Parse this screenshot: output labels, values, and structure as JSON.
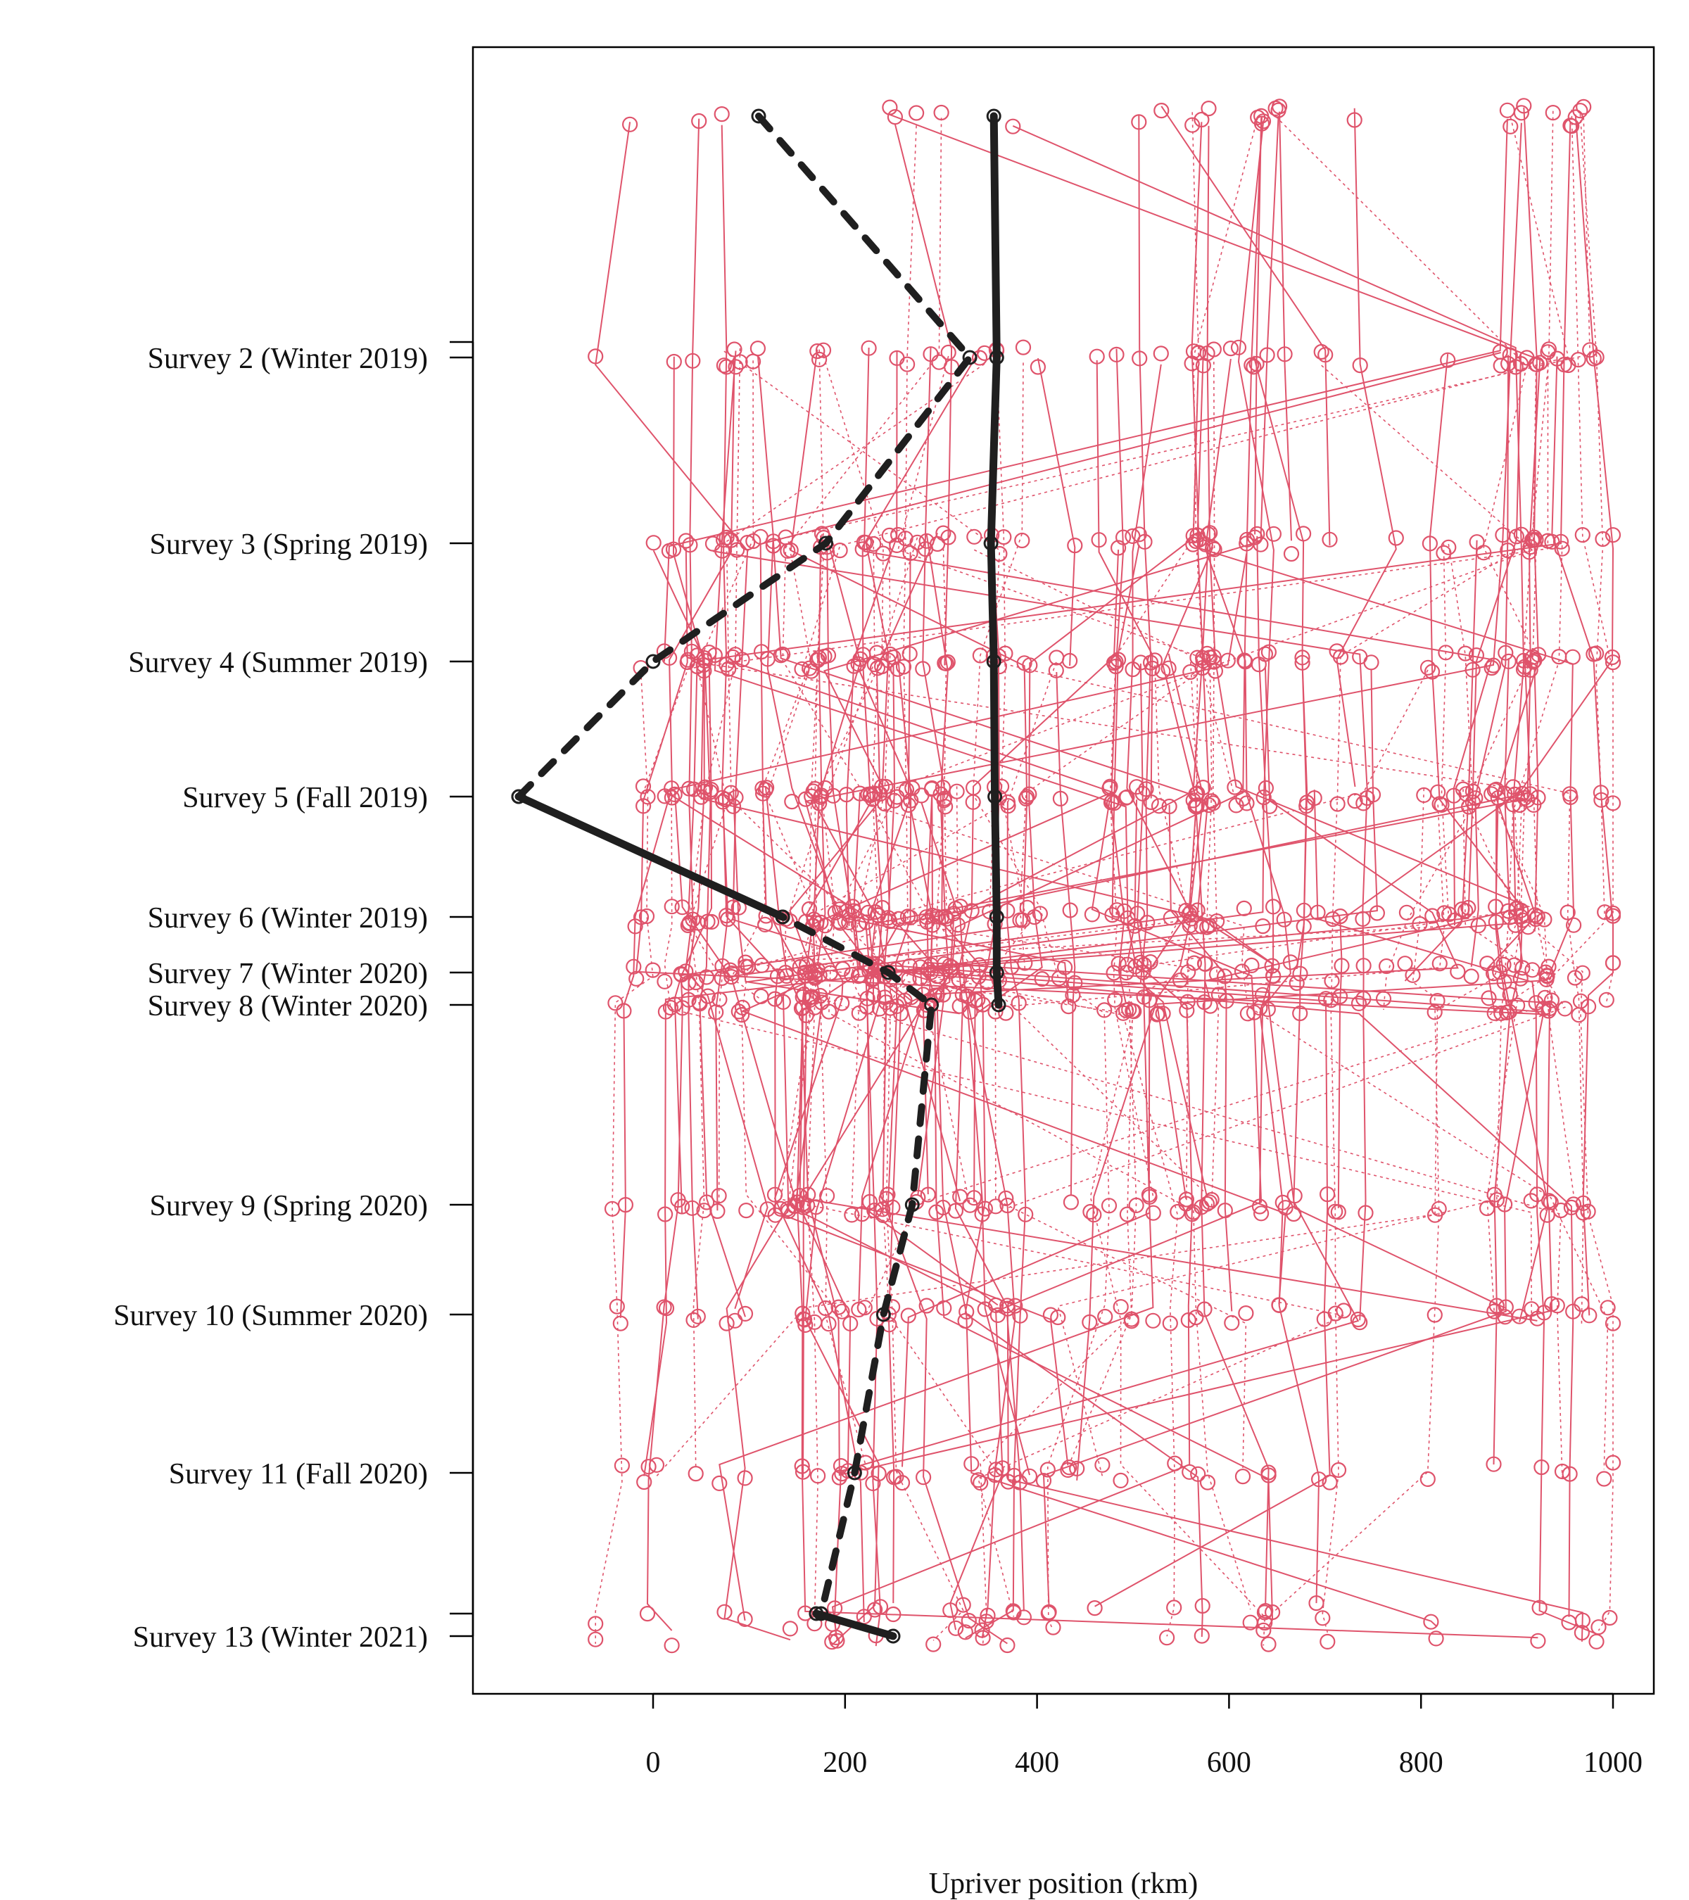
{
  "chart_data": {
    "type": "scatter",
    "title": "",
    "xlabel": "Upriver position (rkm)",
    "ylabel": "",
    "xlim": [
      -190,
      1045
    ],
    "x_ticks": [
      0,
      200,
      400,
      600,
      800,
      1000
    ],
    "survey_axis": [
      {
        "label": "Survey 2 (Winter 2019)"
      },
      {
        "label": "Survey 3 (Spring 2019)"
      },
      {
        "label": "Survey 4 (Summer 2019)"
      },
      {
        "label": "Survey 5 (Fall 2019)"
      },
      {
        "label": "Survey 6 (Winter 2019)"
      },
      {
        "label": "Survey 7 (Winter 2020)"
      },
      {
        "label": "Survey 8 (Winter 2020)"
      },
      {
        "label": "Survey 9 (Spring 2020)"
      },
      {
        "label": "Survey 10 (Summer 2020)"
      },
      {
        "label": "Survey 11 (Fall 2020)"
      },
      {
        "label": "Survey 13 (Winter 2021)"
      }
    ],
    "survey_order": [
      1,
      2,
      3,
      4,
      5,
      6,
      7,
      8,
      9,
      10,
      11,
      12,
      13
    ],
    "extra_axis_ticks": [
      2,
      13
    ],
    "colors": {
      "tracks": "#DF536B",
      "highlight": "#1f1f1f",
      "frame": "#000000"
    },
    "highlight_series": [
      {
        "style": "dashed",
        "points": [
          [
            1,
            110
          ],
          [
            2,
            330
          ],
          [
            3,
            180
          ],
          [
            4,
            0
          ],
          [
            5,
            -140
          ],
          [
            6,
            135
          ],
          [
            7,
            245
          ],
          [
            8,
            290
          ],
          [
            9,
            270
          ],
          [
            10,
            240
          ],
          [
            11,
            210
          ],
          [
            12,
            175
          ]
        ]
      },
      {
        "style": "solid",
        "points": [
          [
            5,
            -140
          ],
          [
            6,
            135
          ]
        ]
      },
      {
        "style": "solid",
        "points": [
          [
            12,
            170
          ],
          [
            13,
            250
          ]
        ]
      },
      {
        "style": "solid",
        "points": [
          [
            1,
            355
          ],
          [
            2,
            358
          ],
          [
            3,
            352
          ],
          [
            4,
            355
          ],
          [
            5,
            356
          ],
          [
            6,
            358
          ],
          [
            7,
            358
          ],
          [
            8,
            360
          ]
        ]
      }
    ],
    "background_tracks": {
      "description": "",
      "lanes_rkm": [
        15,
        45,
        80,
        110,
        150,
        175,
        210,
        240,
        270,
        300,
        330,
        350,
        360,
        375,
        410,
        475,
        500,
        545,
        570,
        580,
        620,
        650,
        700,
        720,
        830,
        880,
        900,
        910,
        925,
        955
      ]
    }
  }
}
